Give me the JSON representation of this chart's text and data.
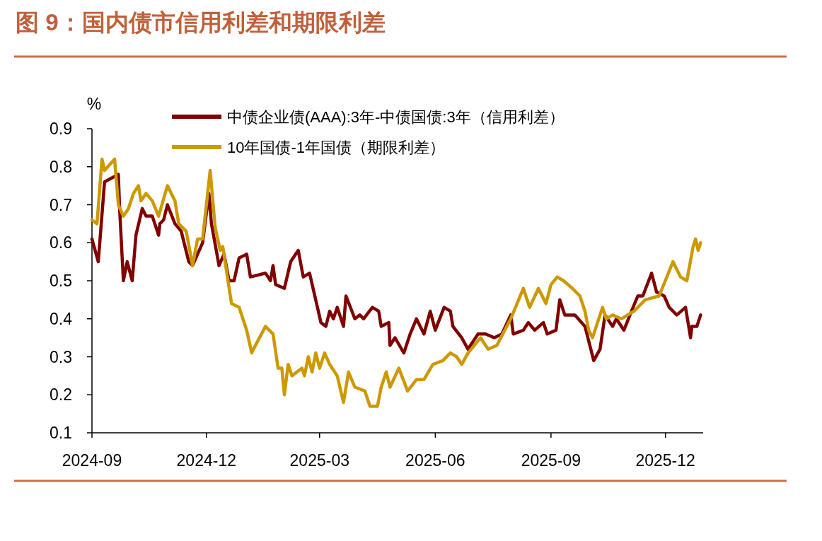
{
  "chart_data": {
    "type": "line",
    "title": "图 9：国内债市信用利差和期限利差",
    "ylabel": "%",
    "xlim": [
      "2024-09-01",
      "2025-12-31"
    ],
    "xticks": [
      "2024-09",
      "2024-12",
      "2025-03",
      "2025-06",
      "2025-09",
      "2025-12"
    ],
    "ylim": [
      0.1,
      0.9
    ],
    "yticks": [
      0.1,
      0.2,
      0.3,
      0.4,
      0.5,
      0.6,
      0.7,
      0.8,
      0.9
    ],
    "legend": "top left",
    "marker": "none",
    "line_style": "solid",
    "series": [
      {
        "name": "中债企业债(AAA):3年-中债国债:3年（信用利差）",
        "color": "#800000",
        "x": [
          "2024-09-01",
          "2024-09-06",
          "2024-09-11",
          "2024-09-22",
          "2024-09-23",
          "2024-09-26",
          "2024-09-29",
          "2024-10-03",
          "2024-10-06",
          "2024-10-11",
          "2024-10-14",
          "2024-10-19",
          "2024-10-24",
          "2024-10-25",
          "2024-10-28",
          "2024-10-31",
          "2024-11-06",
          "2024-11-11",
          "2024-11-17",
          "2024-11-20",
          "2024-11-24",
          "2024-11-28",
          "2024-12-03",
          "2024-12-05",
          "2024-12-11",
          "2024-12-15",
          "2024-12-19",
          "2024-12-23",
          "2024-12-27",
          "2025-01-02",
          "2025-01-05",
          "2025-01-17",
          "2025-01-21",
          "2025-01-23",
          "2025-01-25",
          "2025-02-01",
          "2025-02-06",
          "2025-02-12",
          "2025-02-16",
          "2025-02-21",
          "2025-02-28",
          "2025-03-02",
          "2025-03-06",
          "2025-03-09",
          "2025-03-12",
          "2025-03-15",
          "2025-03-20",
          "2025-03-22",
          "2025-03-29",
          "2025-04-02",
          "2025-04-05",
          "2025-04-12",
          "2025-04-17",
          "2025-04-19",
          "2025-04-25",
          "2025-04-26",
          "2025-04-30",
          "2025-05-07",
          "2025-05-12",
          "2025-05-17",
          "2025-05-23",
          "2025-05-28",
          "2025-06-01",
          "2025-06-08",
          "2025-06-13",
          "2025-06-15",
          "2025-06-22",
          "2025-06-27",
          "2025-07-05",
          "2025-07-11",
          "2025-07-18",
          "2025-07-24",
          "2025-07-31",
          "2025-08-02",
          "2025-08-10",
          "2025-08-14",
          "2025-08-19",
          "2025-08-26",
          "2025-08-29",
          "2025-09-05",
          "2025-09-08",
          "2025-09-12",
          "2025-09-20",
          "2025-09-28",
          "2025-10-05",
          "2025-10-10",
          "2025-10-14",
          "2025-10-20",
          "2025-10-23",
          "2025-10-29",
          "2025-11-04",
          "2025-11-09",
          "2025-11-13",
          "2025-11-20",
          "2025-11-24",
          "2025-11-30",
          "2025-12-04",
          "2025-12-10",
          "2025-12-17",
          "2025-12-21",
          "2025-12-22",
          "2025-12-26",
          "2025-12-29"
        ],
        "values": [
          0.61,
          0.55,
          0.76,
          0.78,
          0.69,
          0.5,
          0.55,
          0.5,
          0.62,
          0.69,
          0.67,
          0.67,
          0.62,
          0.65,
          0.66,
          0.7,
          0.65,
          0.63,
          0.55,
          0.54,
          0.57,
          0.6,
          0.73,
          0.65,
          0.54,
          0.57,
          0.5,
          0.5,
          0.56,
          0.57,
          0.51,
          0.52,
          0.5,
          0.54,
          0.49,
          0.48,
          0.55,
          0.58,
          0.51,
          0.52,
          0.42,
          0.39,
          0.38,
          0.42,
          0.4,
          0.43,
          0.38,
          0.46,
          0.4,
          0.41,
          0.4,
          0.43,
          0.42,
          0.38,
          0.39,
          0.33,
          0.35,
          0.31,
          0.36,
          0.4,
          0.36,
          0.42,
          0.37,
          0.43,
          0.42,
          0.38,
          0.35,
          0.32,
          0.36,
          0.36,
          0.35,
          0.36,
          0.41,
          0.36,
          0.37,
          0.39,
          0.37,
          0.39,
          0.36,
          0.37,
          0.45,
          0.41,
          0.41,
          0.38,
          0.29,
          0.32,
          0.41,
          0.38,
          0.4,
          0.37,
          0.42,
          0.46,
          0.46,
          0.52,
          0.47,
          0.46,
          0.43,
          0.41,
          0.43,
          0.35,
          0.38,
          0.38,
          0.41
        ]
      },
      {
        "name": "10年国债-1年国债（期限利差）",
        "color": "#cc9900",
        "x": [
          "2024-09-01",
          "2024-09-05",
          "2024-09-09",
          "2024-09-11",
          "2024-09-19",
          "2024-09-22",
          "2024-09-26",
          "2024-09-30",
          "2024-10-04",
          "2024-10-08",
          "2024-10-10",
          "2024-10-14",
          "2024-10-19",
          "2024-10-24",
          "2024-10-31",
          "2024-11-06",
          "2024-11-09",
          "2024-11-15",
          "2024-11-20",
          "2024-11-24",
          "2024-11-28",
          "2024-12-04",
          "2024-12-08",
          "2024-12-12",
          "2024-12-14",
          "2024-12-21",
          "2024-12-27",
          "2025-01-02",
          "2025-01-06",
          "2025-01-09",
          "2025-01-17",
          "2025-01-23",
          "2025-01-27",
          "2025-01-30",
          "2025-02-01",
          "2025-02-04",
          "2025-02-07",
          "2025-02-15",
          "2025-02-17",
          "2025-02-20",
          "2025-02-23",
          "2025-02-26",
          "2025-03-01",
          "2025-03-05",
          "2025-03-09",
          "2025-03-15",
          "2025-03-20",
          "2025-03-24",
          "2025-03-29",
          "2025-04-06",
          "2025-04-10",
          "2025-04-16",
          "2025-04-19",
          "2025-04-23",
          "2025-04-26",
          "2025-05-03",
          "2025-05-10",
          "2025-05-17",
          "2025-05-23",
          "2025-05-30",
          "2025-06-07",
          "2025-06-13",
          "2025-06-18",
          "2025-06-22",
          "2025-06-27",
          "2025-07-07",
          "2025-07-13",
          "2025-07-20",
          "2025-07-31",
          "2025-08-10",
          "2025-08-15",
          "2025-08-22",
          "2025-08-28",
          "2025-09-01",
          "2025-09-06",
          "2025-09-11",
          "2025-09-18",
          "2025-09-24",
          "2025-09-28",
          "2025-10-01",
          "2025-10-04",
          "2025-10-12",
          "2025-10-15",
          "2025-10-20",
          "2025-10-27",
          "2025-11-06",
          "2025-11-15",
          "2025-11-26",
          "2025-12-07",
          "2025-12-13",
          "2025-12-18",
          "2025-12-23",
          "2025-12-25",
          "2025-12-27",
          "2025-12-29"
        ],
        "values": [
          0.66,
          0.65,
          0.82,
          0.79,
          0.82,
          0.7,
          0.67,
          0.69,
          0.73,
          0.75,
          0.71,
          0.73,
          0.71,
          0.67,
          0.75,
          0.71,
          0.65,
          0.63,
          0.54,
          0.61,
          0.61,
          0.79,
          0.64,
          0.58,
          0.59,
          0.44,
          0.43,
          0.37,
          0.31,
          0.33,
          0.38,
          0.36,
          0.27,
          0.27,
          0.2,
          0.28,
          0.25,
          0.27,
          0.25,
          0.3,
          0.26,
          0.31,
          0.27,
          0.31,
          0.28,
          0.25,
          0.18,
          0.26,
          0.22,
          0.21,
          0.17,
          0.17,
          0.22,
          0.26,
          0.22,
          0.27,
          0.21,
          0.24,
          0.24,
          0.28,
          0.29,
          0.31,
          0.3,
          0.28,
          0.31,
          0.35,
          0.32,
          0.33,
          0.4,
          0.48,
          0.43,
          0.48,
          0.44,
          0.49,
          0.51,
          0.5,
          0.48,
          0.46,
          0.42,
          0.37,
          0.35,
          0.43,
          0.4,
          0.41,
          0.4,
          0.42,
          0.45,
          0.46,
          0.55,
          0.51,
          0.5,
          0.59,
          0.61,
          0.58,
          0.6
        ]
      }
    ]
  }
}
